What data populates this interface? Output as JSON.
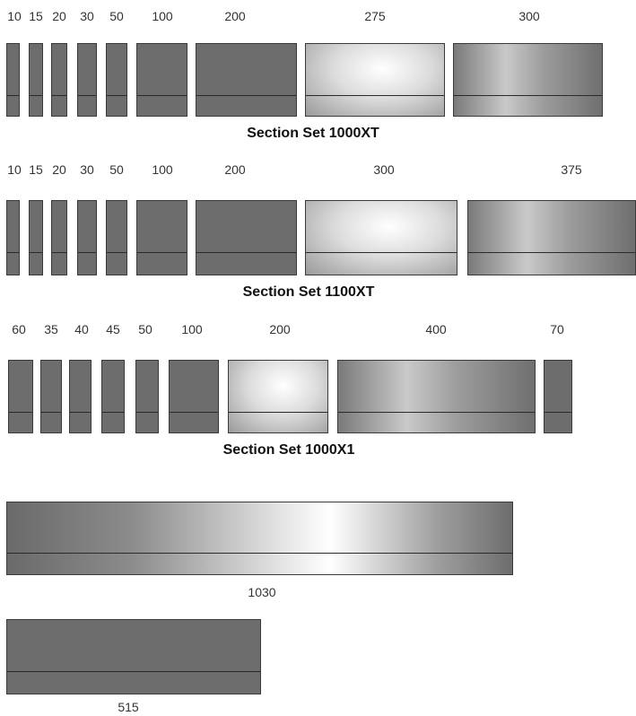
{
  "sets": [
    {
      "caption": "Section Set 1000XT",
      "sections": [
        {
          "label": "10",
          "shade": "dark"
        },
        {
          "label": "15",
          "shade": "dark"
        },
        {
          "label": "20",
          "shade": "dark"
        },
        {
          "label": "30",
          "shade": "dark"
        },
        {
          "label": "50",
          "shade": "dark"
        },
        {
          "label": "100",
          "shade": "dark"
        },
        {
          "label": "200",
          "shade": "dark"
        },
        {
          "label": "275",
          "shade": "light"
        },
        {
          "label": "300",
          "shade": "fade"
        }
      ]
    },
    {
      "caption": "Section Set 1100XT",
      "sections": [
        {
          "label": "10",
          "shade": "dark"
        },
        {
          "label": "15",
          "shade": "dark"
        },
        {
          "label": "20",
          "shade": "dark"
        },
        {
          "label": "30",
          "shade": "dark"
        },
        {
          "label": "50",
          "shade": "dark"
        },
        {
          "label": "100",
          "shade": "dark"
        },
        {
          "label": "200",
          "shade": "dark"
        },
        {
          "label": "300",
          "shade": "light"
        },
        {
          "label": "375",
          "shade": "fade"
        }
      ]
    },
    {
      "caption": "Section Set 1000X1",
      "sections": [
        {
          "label": "60",
          "shade": "dark"
        },
        {
          "label": "35",
          "shade": "dark"
        },
        {
          "label": "40",
          "shade": "dark"
        },
        {
          "label": "45",
          "shade": "dark"
        },
        {
          "label": "50",
          "shade": "dark"
        },
        {
          "label": "100",
          "shade": "dark"
        },
        {
          "label": "200",
          "shade": "light"
        },
        {
          "label": "400",
          "shade": "fade"
        },
        {
          "label": "70",
          "shade": "dark"
        }
      ]
    }
  ],
  "singles": [
    {
      "label": "1030",
      "shade": "bright"
    },
    {
      "label": "515",
      "shade": "dark"
    }
  ],
  "colors": {
    "dark": "#6d6d6d",
    "light_center": "#f4f4f4",
    "border": "#3a3a3a"
  }
}
